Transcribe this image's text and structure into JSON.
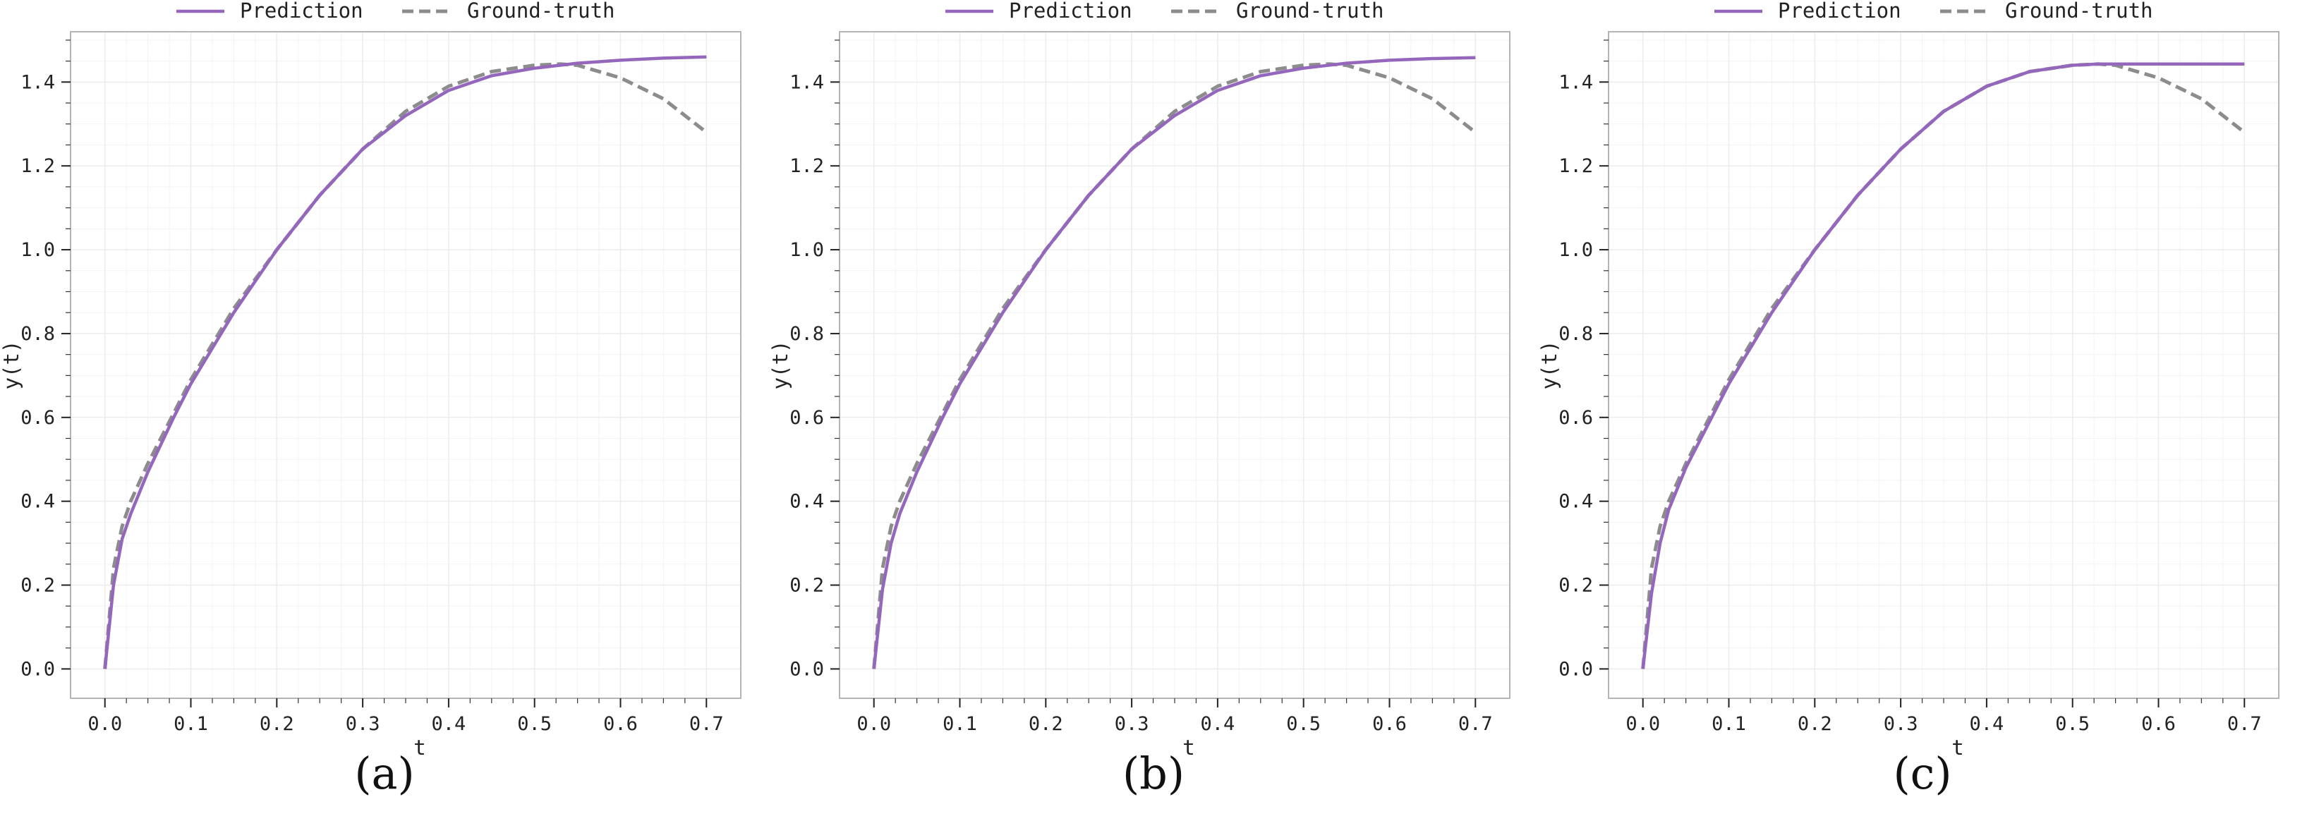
{
  "figure": {
    "panel_labels": [
      "(a)",
      "(b)",
      "(c)"
    ]
  },
  "colors": {
    "prediction": "#9467bd",
    "ground_truth": "#8c8c8c",
    "grid": "#ececec",
    "frame": "#b5b5b5"
  },
  "chart_data": [
    {
      "type": "line",
      "panel": "(a)",
      "xlabel": "t",
      "ylabel": "y(t)",
      "xlim": [
        -0.04,
        0.74
      ],
      "ylim": [
        -0.07,
        1.52
      ],
      "xticks": [
        "0.0",
        "0.1",
        "0.2",
        "0.3",
        "0.4",
        "0.5",
        "0.6",
        "0.7"
      ],
      "yticks": [
        "0.0",
        "0.2",
        "0.4",
        "0.6",
        "0.8",
        "1.0",
        "1.2",
        "1.4"
      ],
      "grid": true,
      "legend_position": "top-center",
      "series": [
        {
          "name": "Prediction",
          "style": "solid",
          "x": [
            0,
            0.01,
            0.02,
            0.03,
            0.05,
            0.08,
            0.1,
            0.15,
            0.2,
            0.25,
            0.3,
            0.35,
            0.4,
            0.45,
            0.5,
            0.55,
            0.6,
            0.65,
            0.7
          ],
          "y": [
            0.0,
            0.2,
            0.31,
            0.37,
            0.47,
            0.6,
            0.68,
            0.85,
            1.0,
            1.13,
            1.24,
            1.32,
            1.38,
            1.415,
            1.433,
            1.445,
            1.452,
            1.457,
            1.46
          ]
        },
        {
          "name": "Ground-truth",
          "style": "dashed",
          "x": [
            0,
            0.01,
            0.02,
            0.03,
            0.05,
            0.08,
            0.1,
            0.15,
            0.2,
            0.25,
            0.3,
            0.35,
            0.4,
            0.45,
            0.5,
            0.53,
            0.55,
            0.6,
            0.65,
            0.7
          ],
          "y": [
            0.0,
            0.24,
            0.34,
            0.4,
            0.49,
            0.61,
            0.69,
            0.86,
            1.0,
            1.13,
            1.24,
            1.33,
            1.39,
            1.425,
            1.44,
            1.443,
            1.44,
            1.41,
            1.36,
            1.28
          ]
        }
      ]
    },
    {
      "type": "line",
      "panel": "(b)",
      "xlabel": "t",
      "ylabel": "y(t)",
      "xlim": [
        -0.04,
        0.74
      ],
      "ylim": [
        -0.07,
        1.52
      ],
      "xticks": [
        "0.0",
        "0.1",
        "0.2",
        "0.3",
        "0.4",
        "0.5",
        "0.6",
        "0.7"
      ],
      "yticks": [
        "0.0",
        "0.2",
        "0.4",
        "0.6",
        "0.8",
        "1.0",
        "1.2",
        "1.4"
      ],
      "grid": true,
      "legend_position": "top-center",
      "series": [
        {
          "name": "Prediction",
          "style": "solid",
          "x": [
            0,
            0.01,
            0.02,
            0.03,
            0.05,
            0.08,
            0.1,
            0.15,
            0.2,
            0.25,
            0.3,
            0.35,
            0.4,
            0.45,
            0.5,
            0.55,
            0.6,
            0.65,
            0.7
          ],
          "y": [
            0.0,
            0.19,
            0.3,
            0.37,
            0.47,
            0.6,
            0.68,
            0.85,
            1.0,
            1.13,
            1.24,
            1.32,
            1.38,
            1.415,
            1.433,
            1.445,
            1.452,
            1.456,
            1.458
          ]
        },
        {
          "name": "Ground-truth",
          "style": "dashed",
          "x": [
            0,
            0.01,
            0.02,
            0.03,
            0.05,
            0.08,
            0.1,
            0.15,
            0.2,
            0.25,
            0.3,
            0.35,
            0.4,
            0.45,
            0.5,
            0.53,
            0.55,
            0.6,
            0.65,
            0.7
          ],
          "y": [
            0.0,
            0.24,
            0.34,
            0.4,
            0.49,
            0.61,
            0.69,
            0.86,
            1.0,
            1.13,
            1.24,
            1.33,
            1.39,
            1.425,
            1.44,
            1.443,
            1.44,
            1.41,
            1.36,
            1.28
          ]
        }
      ]
    },
    {
      "type": "line",
      "panel": "(c)",
      "xlabel": "t",
      "ylabel": "y(t)",
      "xlim": [
        -0.04,
        0.74
      ],
      "ylim": [
        -0.07,
        1.52
      ],
      "xticks": [
        "0.0",
        "0.1",
        "0.2",
        "0.3",
        "0.4",
        "0.5",
        "0.6",
        "0.7"
      ],
      "yticks": [
        "0.0",
        "0.2",
        "0.4",
        "0.6",
        "0.8",
        "1.0",
        "1.2",
        "1.4"
      ],
      "grid": true,
      "legend_position": "top-center",
      "series": [
        {
          "name": "Prediction",
          "style": "solid",
          "x": [
            0,
            0.01,
            0.02,
            0.03,
            0.05,
            0.08,
            0.1,
            0.15,
            0.2,
            0.25,
            0.3,
            0.35,
            0.4,
            0.45,
            0.5,
            0.53,
            0.55,
            0.6,
            0.65,
            0.7
          ],
          "y": [
            0.0,
            0.18,
            0.3,
            0.38,
            0.48,
            0.6,
            0.68,
            0.85,
            1.0,
            1.13,
            1.24,
            1.33,
            1.39,
            1.425,
            1.44,
            1.443,
            1.443,
            1.443,
            1.443,
            1.443
          ]
        },
        {
          "name": "Ground-truth",
          "style": "dashed",
          "x": [
            0,
            0.01,
            0.02,
            0.03,
            0.05,
            0.08,
            0.1,
            0.15,
            0.2,
            0.25,
            0.3,
            0.35,
            0.4,
            0.45,
            0.5,
            0.53,
            0.55,
            0.6,
            0.65,
            0.7
          ],
          "y": [
            0.0,
            0.24,
            0.34,
            0.4,
            0.49,
            0.61,
            0.69,
            0.86,
            1.0,
            1.13,
            1.24,
            1.33,
            1.39,
            1.425,
            1.44,
            1.443,
            1.44,
            1.41,
            1.36,
            1.28
          ]
        }
      ]
    }
  ]
}
